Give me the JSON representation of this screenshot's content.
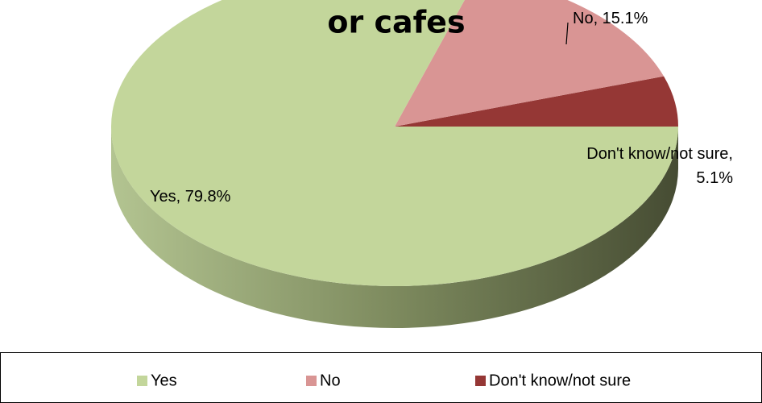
{
  "chart_data": {
    "type": "pie",
    "title": "or cafes",
    "categories": [
      "Yes",
      "No",
      "Don't know/not sure"
    ],
    "values": [
      79.8,
      15.1,
      5.1
    ],
    "value_labels": [
      "Yes, 79.8%",
      "No, 15.1%",
      "Don't know/not sure, 5.1%"
    ],
    "colors": [
      "#c3d69b",
      "#d99594",
      "#953735"
    ],
    "legend": "bottom"
  }
}
